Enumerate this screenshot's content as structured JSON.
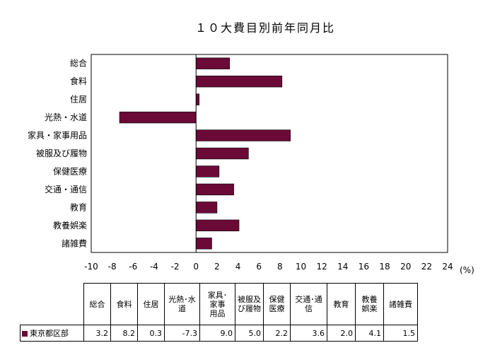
{
  "chart_data": {
    "type": "bar",
    "orientation": "horizontal",
    "title": "１０大費目別前年同月比",
    "unit": "(%)",
    "categories": [
      "総合",
      "食料",
      "住居",
      "光熱・水道",
      "家具・家事用品",
      "被服及び履物",
      "保健医療",
      "交通・通信",
      "教育",
      "教養娯楽",
      "諸雑費"
    ],
    "series": [
      {
        "name": "東京都区部",
        "values": [
          3.2,
          8.2,
          0.3,
          -7.3,
          9.0,
          5.0,
          2.2,
          3.6,
          2.0,
          4.1,
          1.5
        ]
      }
    ],
    "xlim": [
      -10,
      24
    ],
    "xticks": [
      -10,
      -8,
      -6,
      -4,
      -2,
      0,
      2,
      4,
      6,
      8,
      10,
      12,
      14,
      16,
      18,
      20,
      22,
      24
    ],
    "grid": false,
    "bar_color": "#6b0a36"
  },
  "table": {
    "headers": [
      "総合",
      "食料",
      "住居",
      "光熱･水\n道",
      "家具･\n家事\n用品",
      "被服及\nび履物",
      "保健\n医療",
      "交通･通\n信",
      "教育",
      "教養\n娯楽",
      "諸雑費"
    ],
    "row_label": "東京都区部",
    "values": [
      "3.2",
      "8.2",
      "0.3",
      "-7.3",
      "9.0",
      "5.0",
      "2.2",
      "3.6",
      "2.0",
      "4.1",
      "1.5"
    ]
  }
}
